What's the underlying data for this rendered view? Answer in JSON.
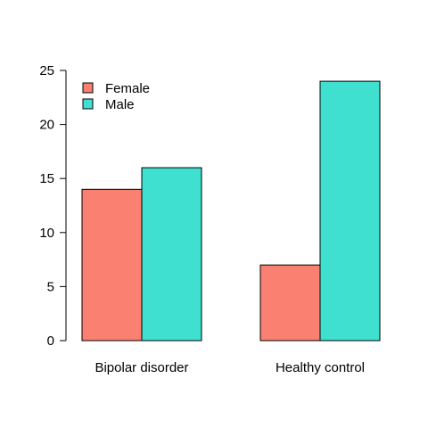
{
  "chart_data": {
    "type": "bar",
    "categories": [
      "Bipolar disorder",
      "Healthy control"
    ],
    "series": [
      {
        "name": "Female",
        "values": [
          14,
          7
        ],
        "color": "#fa8072"
      },
      {
        "name": "Male",
        "values": [
          16,
          24
        ],
        "color": "#40e0d0"
      }
    ],
    "title": "",
    "xlabel": "",
    "ylabel": "",
    "ylim": [
      0,
      25
    ],
    "yticks": [
      0,
      5,
      10,
      15,
      20,
      25
    ],
    "grid": false,
    "legend_position": "top-left",
    "bar_border_color": "#000000"
  }
}
